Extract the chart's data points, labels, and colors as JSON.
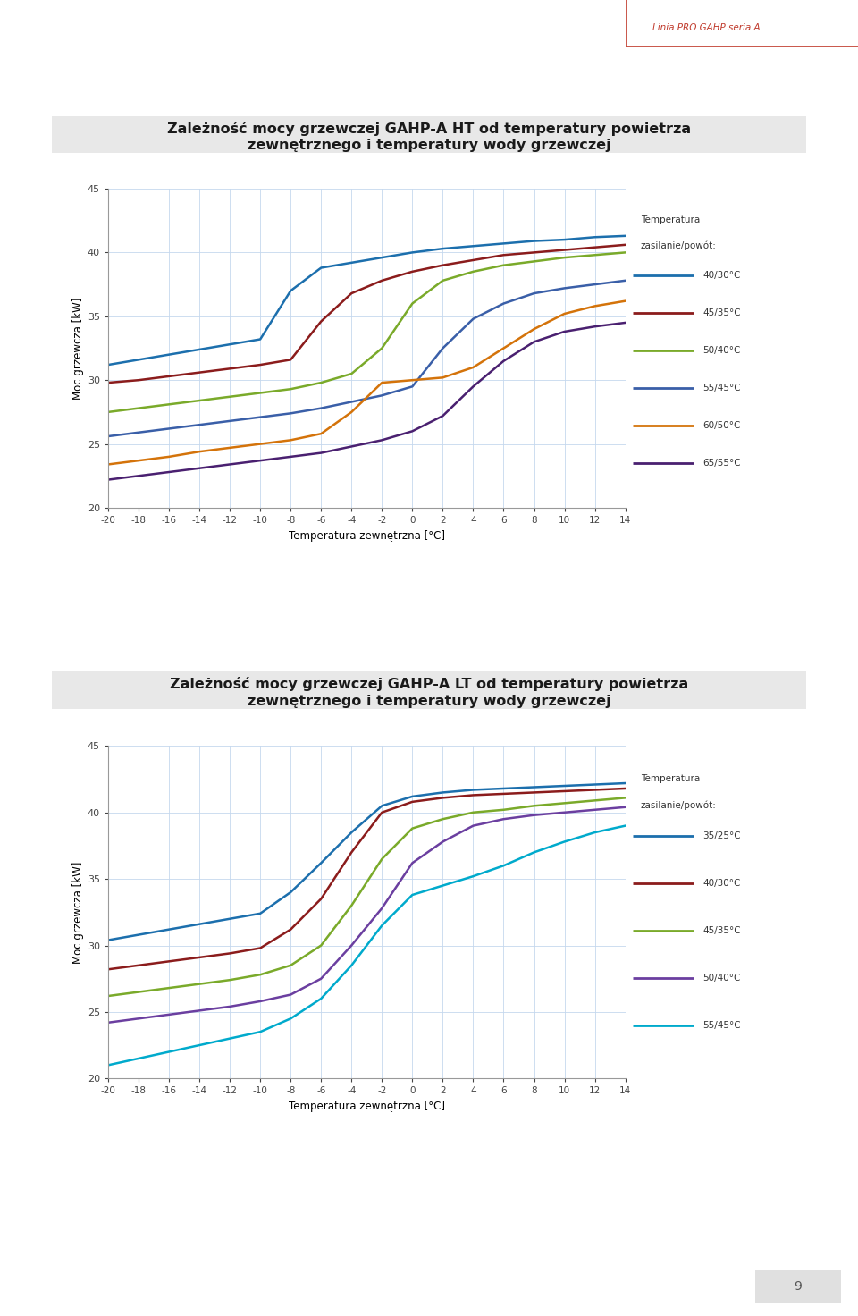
{
  "page_bg": "#ffffff",
  "header_color": "#c0392b",
  "header_text": "Linia PRO GAHP seria A",
  "chart1_title_line1": "Zależność mocy grzewczej GAHP-A HT od temperatury powietrza",
  "chart1_title_line2": "zewnętrznego i temperatury wody grzewczej",
  "chart2_title_line1": "Zależność mocy grzewczej GAHP-A LT od temperatury powietrza",
  "chart2_title_line2": "zewnętrznego i temperatury wody grzewczej",
  "xlabel": "Temperatura zewnętrzna [°C]",
  "ylabel": "Moc grzewcza [kW]",
  "legend_title_line1": "Temperatura",
  "legend_title_line2": "zasilanie/powót:",
  "x_values": [
    -20,
    -18,
    -16,
    -14,
    -12,
    -10,
    -8,
    -6,
    -4,
    -2,
    0,
    2,
    4,
    6,
    8,
    10,
    12,
    14
  ],
  "chart1_series": [
    {
      "label": "40/30°C",
      "color": "#1c6fad",
      "values": [
        31.2,
        31.6,
        32.0,
        32.4,
        32.8,
        33.2,
        37.0,
        38.8,
        39.2,
        39.6,
        40.0,
        40.3,
        40.5,
        40.7,
        40.9,
        41.0,
        41.2,
        41.3
      ]
    },
    {
      "label": "45/35°C",
      "color": "#8b1c1c",
      "values": [
        29.8,
        30.0,
        30.3,
        30.6,
        30.9,
        31.2,
        31.6,
        34.6,
        36.8,
        37.8,
        38.5,
        39.0,
        39.4,
        39.8,
        40.0,
        40.2,
        40.4,
        40.6
      ]
    },
    {
      "label": "50/40°C",
      "color": "#7aaa2a",
      "values": [
        27.5,
        27.8,
        28.1,
        28.4,
        28.7,
        29.0,
        29.3,
        29.8,
        30.5,
        32.5,
        36.0,
        37.8,
        38.5,
        39.0,
        39.3,
        39.6,
        39.8,
        40.0
      ]
    },
    {
      "label": "55/45°C",
      "color": "#3a5fa8",
      "values": [
        25.6,
        25.9,
        26.2,
        26.5,
        26.8,
        27.1,
        27.4,
        27.8,
        28.3,
        28.8,
        29.5,
        32.5,
        34.8,
        36.0,
        36.8,
        37.2,
        37.5,
        37.8
      ]
    },
    {
      "label": "60/50°C",
      "color": "#d4730a",
      "values": [
        23.4,
        23.7,
        24.0,
        24.4,
        24.7,
        25.0,
        25.3,
        25.8,
        27.5,
        29.8,
        30.0,
        30.2,
        31.0,
        32.5,
        34.0,
        35.2,
        35.8,
        36.2
      ]
    },
    {
      "label": "65/55°C",
      "color": "#4a2070",
      "values": [
        22.2,
        22.5,
        22.8,
        23.1,
        23.4,
        23.7,
        24.0,
        24.3,
        24.8,
        25.3,
        26.0,
        27.2,
        29.5,
        31.5,
        33.0,
        33.8,
        34.2,
        34.5
      ]
    }
  ],
  "chart2_series": [
    {
      "label": "35/25°C",
      "color": "#1c6fad",
      "values": [
        30.4,
        30.8,
        31.2,
        31.6,
        32.0,
        32.4,
        34.0,
        36.2,
        38.5,
        40.5,
        41.2,
        41.5,
        41.7,
        41.8,
        41.9,
        42.0,
        42.1,
        42.2
      ]
    },
    {
      "label": "40/30°C",
      "color": "#8b1c1c",
      "values": [
        28.2,
        28.5,
        28.8,
        29.1,
        29.4,
        29.8,
        31.2,
        33.5,
        37.0,
        40.0,
        40.8,
        41.1,
        41.3,
        41.4,
        41.5,
        41.6,
        41.7,
        41.8
      ]
    },
    {
      "label": "45/35°C",
      "color": "#7aaa2a",
      "values": [
        26.2,
        26.5,
        26.8,
        27.1,
        27.4,
        27.8,
        28.5,
        30.0,
        33.0,
        36.5,
        38.8,
        39.5,
        40.0,
        40.2,
        40.5,
        40.7,
        40.9,
        41.1
      ]
    },
    {
      "label": "50/40°C",
      "color": "#6b3fa0",
      "values": [
        24.2,
        24.5,
        24.8,
        25.1,
        25.4,
        25.8,
        26.3,
        27.5,
        30.0,
        32.8,
        36.2,
        37.8,
        39.0,
        39.5,
        39.8,
        40.0,
        40.2,
        40.4
      ]
    },
    {
      "label": "55/45°C",
      "color": "#00aacc",
      "values": [
        21.0,
        21.5,
        22.0,
        22.5,
        23.0,
        23.5,
        24.5,
        26.0,
        28.5,
        31.5,
        33.8,
        34.5,
        35.2,
        36.0,
        37.0,
        37.8,
        38.5,
        39.0
      ]
    }
  ],
  "ylim": [
    20,
    45
  ],
  "yticks": [
    20,
    25,
    30,
    35,
    40,
    45
  ],
  "grid_color": "#c5d8ee",
  "title_bg": "#e8e8e8",
  "page_num": "9"
}
